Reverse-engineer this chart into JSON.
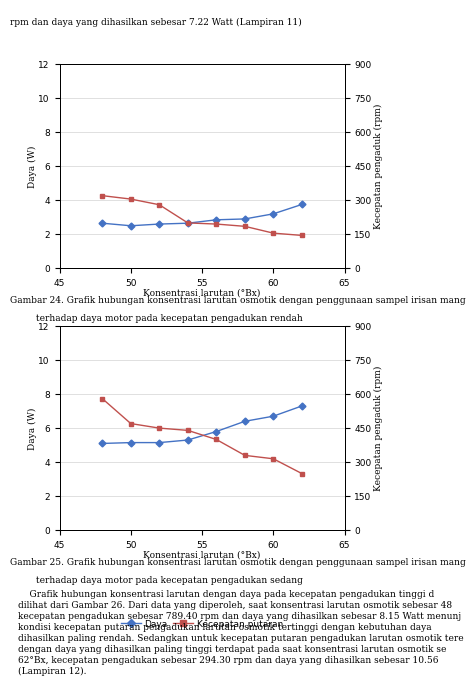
{
  "chart1": {
    "x": [
      48,
      50,
      52,
      54,
      56,
      58,
      60,
      62
    ],
    "daya": [
      2.65,
      2.5,
      2.6,
      2.65,
      2.85,
      2.9,
      3.2,
      3.75
    ],
    "rpm": [
      320,
      305,
      280,
      200,
      195,
      185,
      155,
      145
    ],
    "xlabel": "Konsentrasi larutan (°Bx)",
    "ylabel_left": "Daya (W)",
    "ylabel_right": "Kecepatan pengaduk (rpm)",
    "ylim_left": [
      0,
      12
    ],
    "ylim_right": [
      0,
      900
    ],
    "yticks_left": [
      0,
      2,
      4,
      6,
      8,
      10,
      12
    ],
    "yticks_right": [
      0,
      150,
      300,
      450,
      600,
      750,
      900
    ],
    "xlim": [
      45,
      65
    ],
    "xticks": [
      45,
      50,
      55,
      60,
      65
    ],
    "daya_color": "#4472C4",
    "rpm_color": "#C0504D",
    "caption1": "Gambar 24. Grafik hubungan konsentrasi larutan osmotik dengan penggunaan sampel irisan mang",
    "caption2": "         terhadap daya motor pada kecepatan pengadukan rendah"
  },
  "chart2": {
    "x": [
      48,
      50,
      52,
      54,
      56,
      58,
      60,
      62
    ],
    "daya": [
      5.1,
      5.15,
      5.15,
      5.3,
      5.8,
      6.4,
      6.7,
      7.3
    ],
    "rpm": [
      580,
      470,
      450,
      440,
      400,
      330,
      315,
      250
    ],
    "xlabel": "Konsentrasi larutan (°Bx)",
    "ylabel_left": "Daya (W)",
    "ylabel_right": "Kecepatan pengaduk (rpm)",
    "ylim_left": [
      0,
      12
    ],
    "ylim_right": [
      0,
      900
    ],
    "yticks_left": [
      0,
      2,
      4,
      6,
      8,
      10,
      12
    ],
    "yticks_right": [
      0,
      150,
      300,
      450,
      600,
      750,
      900
    ],
    "xlim": [
      45,
      65
    ],
    "xticks": [
      45,
      50,
      55,
      60,
      65
    ],
    "daya_color": "#4472C4",
    "rpm_color": "#C0504D",
    "caption1": "Gambar 25. Grafik hubungan konsentrasi larutan osmotik dengan penggunaan sampel irisan mang",
    "caption2": "         terhadap daya motor pada kecepatan pengadukan sedang"
  },
  "header_text": "rpm dan daya yang dihasilkan sebesar 7.22 Watt (Lampiran 11)",
  "body_text": "    Grafik hubungan konsentrasi larutan dengan daya pada kecepatan pengadukan tinggi d\ndilihat dari Gambar 26. Dari data yang diperoleh, saat konsentrasi larutan osmotik sebesar 48\nkecepatan pengadukan sebesar 789.40 rpm dan daya yang dihasilkan sebesar 8.15 Watt menunj\nkondisi kecepatan putaran pengadukan larutan osmotik tertinggi dengan kebutuhan daya\ndihasilkan paling rendah. Sedangkan untuk kecepatan putaran pengadukan larutan osmotik tere\ndengan daya yang dihasilkan paling tinggi terdapat pada saat konsentrasi larutan osmotik se\n62°Bx, kecepatan pengadukan sebesar 294.30 rpm dan daya yang dihasilkan sebesar 10.56\n(Lampiran 12).",
  "legend_daya": "Daya",
  "legend_rpm": "Kecepatan putaran"
}
